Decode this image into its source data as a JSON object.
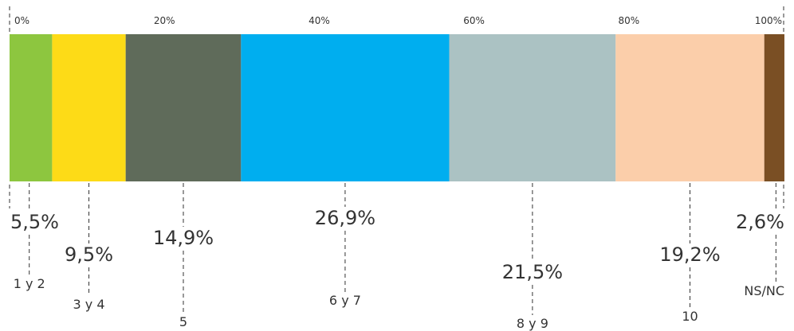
{
  "chart_data": {
    "type": "bar",
    "orientation": "horizontal-stacked-100",
    "title": "",
    "xlabel": "",
    "ylabel": "",
    "xlim": [
      0,
      100
    ],
    "ticks": [
      "0%",
      "20%",
      "40%",
      "60%",
      "80%",
      "100%"
    ],
    "tick_values": [
      0,
      20,
      40,
      60,
      80,
      100
    ],
    "grid": false,
    "legend": "none",
    "series": [
      {
        "category": "1 y 2",
        "value": 5.5,
        "label": "5,5%",
        "color": "#8dc63f"
      },
      {
        "category": "3 y 4",
        "value": 9.5,
        "label": "9,5%",
        "color": "#fddb17"
      },
      {
        "category": "5",
        "value": 14.9,
        "label": "14,9%",
        "color": "#5f6b5a"
      },
      {
        "category": "6 y 7",
        "value": 26.9,
        "label": "26,9%",
        "color": "#00aeef"
      },
      {
        "category": "8 y 9",
        "value": 21.5,
        "label": "21,5%",
        "color": "#abc2c3"
      },
      {
        "category": "10",
        "value": 19.2,
        "label": "19,2%",
        "color": "#fbceaa"
      },
      {
        "category": "NS/NC",
        "value": 2.6,
        "label": "2,6%",
        "color": "#7a4f24"
      }
    ]
  }
}
